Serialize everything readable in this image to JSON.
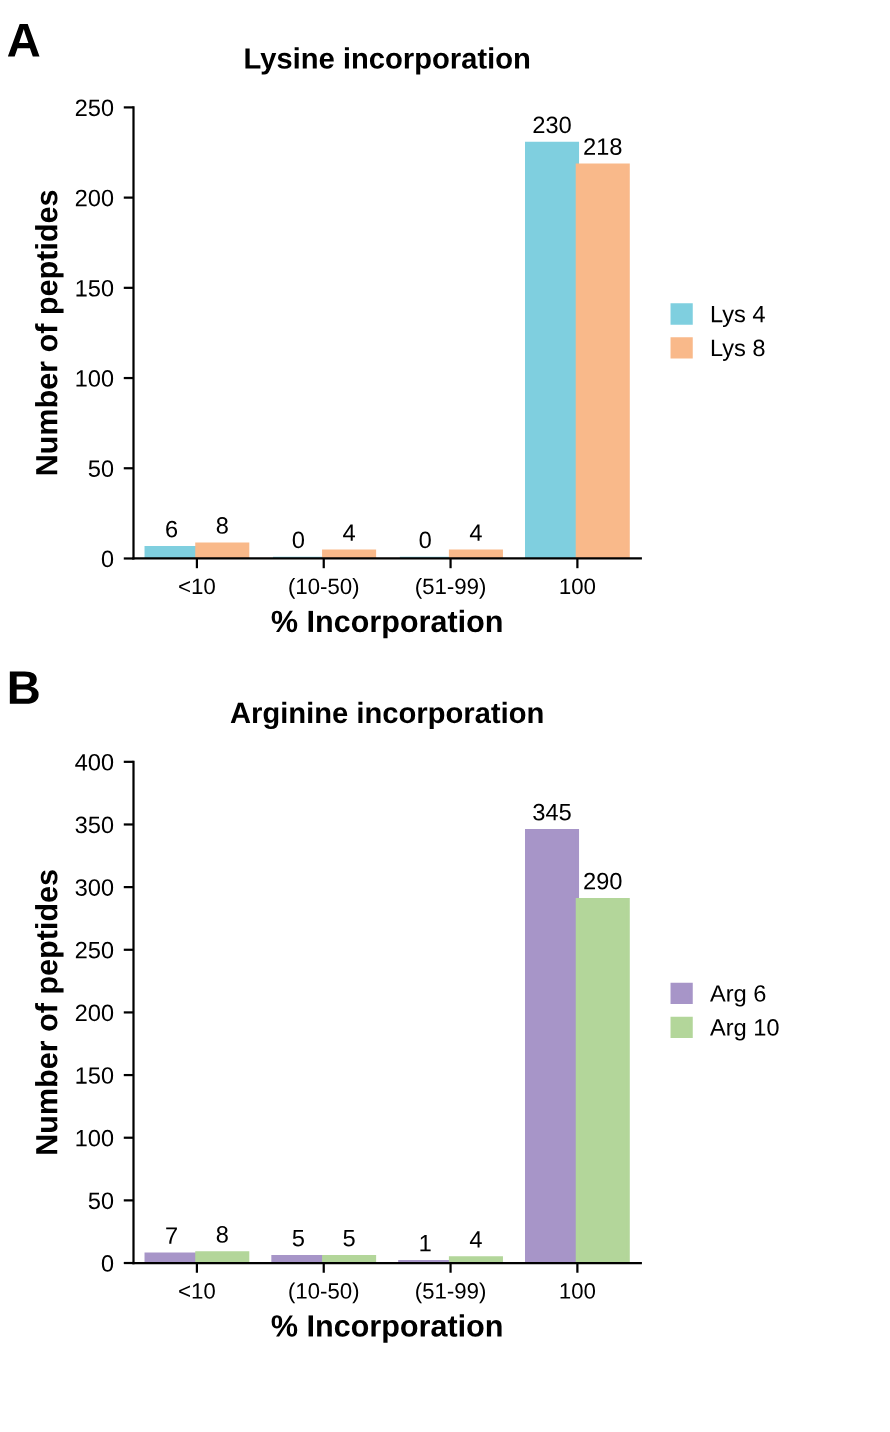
{
  "chart_data": [
    {
      "type": "bar",
      "title": "Lysine incorporation",
      "xlabel": "% Incorporation",
      "ylabel": "Number of peptides",
      "annotations": [
        "A"
      ],
      "categories": [
        "<10",
        "(10-50)",
        "(51-99)",
        "100"
      ],
      "series": [
        {
          "name": "Lys 4",
          "color": "#7fcfdf",
          "values": [
            6,
            0,
            0,
            230
          ]
        },
        {
          "name": "Lys 8",
          "color": "#f9b98a",
          "values": [
            8,
            4,
            4,
            218
          ]
        }
      ],
      "ylim": [
        0,
        250
      ],
      "yticks": [
        0,
        50,
        100,
        150,
        200,
        250
      ],
      "data_labels": true,
      "legend": "right",
      "grid": false
    },
    {
      "type": "bar",
      "title": "Arginine incorporation",
      "xlabel": "% Incorporation",
      "ylabel": "Number of peptides",
      "annotations": [
        "B"
      ],
      "categories": [
        "<10",
        "(10-50)",
        "(51-99)",
        "100"
      ],
      "series": [
        {
          "name": "Arg 6",
          "color": "#a795c8",
          "values": [
            7,
            5,
            1,
            345
          ]
        },
        {
          "name": "Arg 10",
          "color": "#b3d69a",
          "values": [
            8,
            5,
            4,
            290
          ]
        }
      ],
      "ylim": [
        0,
        400
      ],
      "yticks": [
        0,
        50,
        100,
        150,
        200,
        250,
        300,
        350,
        400
      ],
      "data_labels": true,
      "legend": "right",
      "grid": false
    }
  ]
}
